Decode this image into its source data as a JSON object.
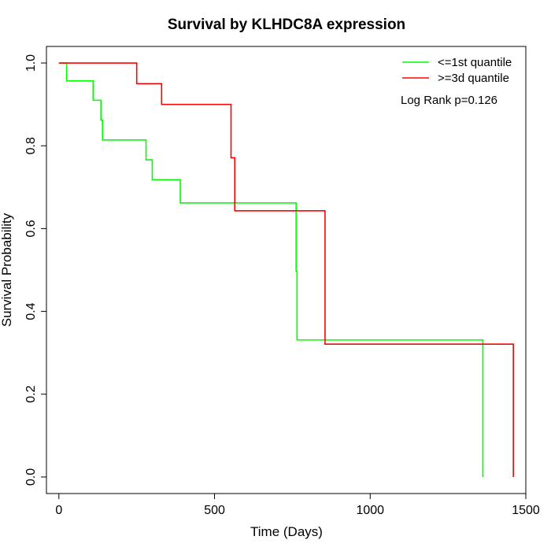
{
  "chart_data": {
    "type": "line",
    "title": "Survival by KLHDC8A expression",
    "xlabel": "Time (Days)",
    "ylabel": "Survival Probability",
    "xlim": [
      -40,
      1500
    ],
    "ylim": [
      -0.04,
      1.04
    ],
    "x_ticks": [
      0,
      500,
      1000,
      1500
    ],
    "y_ticks": [
      0.0,
      0.2,
      0.4,
      0.6,
      0.8,
      1.0
    ],
    "x_tick_labels": [
      "0",
      "500",
      "1000",
      "1500"
    ],
    "y_tick_labels": [
      "0.0",
      "0.2",
      "0.4",
      "0.6",
      "0.8",
      "1.0"
    ],
    "grid": false,
    "legend_position": "top-right",
    "annotation": "Log Rank p=0.126",
    "series": [
      {
        "name": "<=1st quantile",
        "color": "#00ff00",
        "steps": [
          [
            0,
            1.0
          ],
          [
            25,
            0.957
          ],
          [
            110,
            0.91
          ],
          [
            135,
            0.862
          ],
          [
            140,
            0.814
          ],
          [
            280,
            0.766
          ],
          [
            300,
            0.718
          ],
          [
            390,
            0.662
          ],
          [
            762,
            0.497
          ],
          [
            765,
            0.331
          ],
          [
            1362,
            0.0
          ]
        ]
      },
      {
        "name": ">=3d quantile",
        "color": "#ff0000",
        "steps": [
          [
            0,
            1.0
          ],
          [
            250,
            0.95
          ],
          [
            330,
            0.9
          ],
          [
            553,
            0.771
          ],
          [
            565,
            0.643
          ],
          [
            855,
            0.321
          ],
          [
            1460,
            0.0
          ]
        ]
      }
    ]
  }
}
